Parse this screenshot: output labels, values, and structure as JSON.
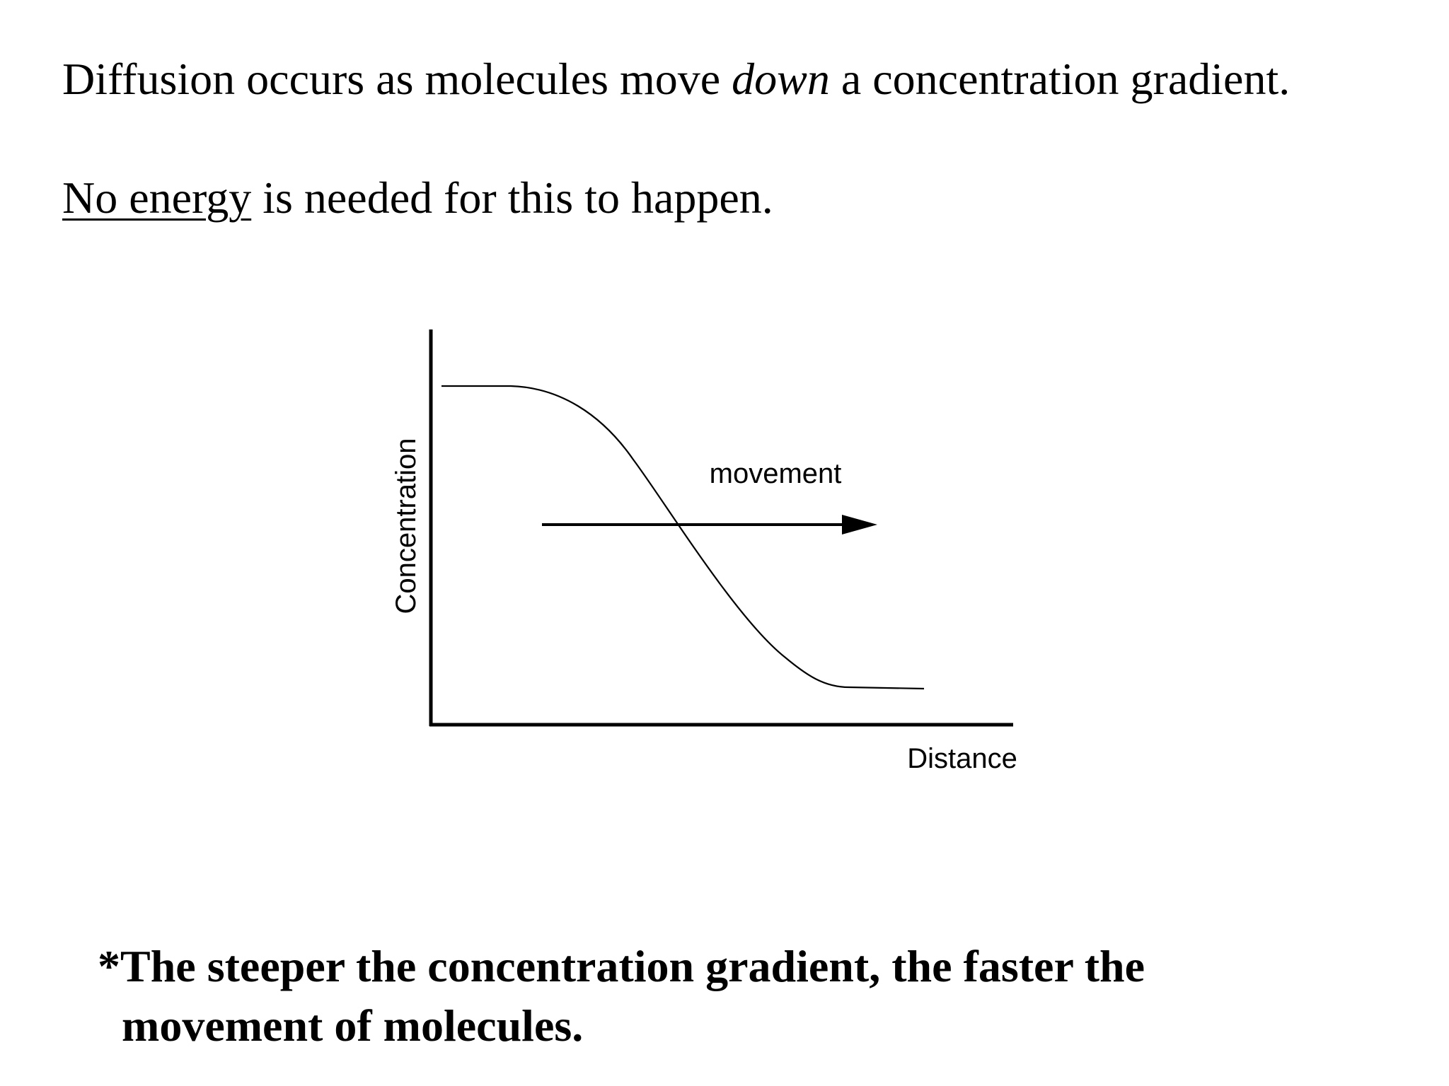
{
  "slide": {
    "line1": {
      "before": "Diffusion occurs as molecules move ",
      "emphasis": "down",
      "after": " a concentration gradient."
    },
    "line2": {
      "underlined": "No energy",
      "rest": " is needed for this to happen."
    },
    "footnote": {
      "line1": "*The steeper the concentration gradient, the faster the",
      "line2": "movement of molecules."
    }
  },
  "diagram": {
    "y_axis_label": "Concentration",
    "x_axis_label": "Distance",
    "arrow_label": "movement"
  }
}
